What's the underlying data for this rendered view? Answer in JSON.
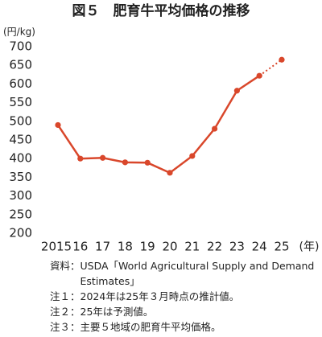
{
  "chart_data": {
    "type": "line",
    "title": "図５　肥育牛平均価格の推移",
    "y_unit": "(円/kg)",
    "x_unit": "(年)",
    "categories": [
      "2015",
      "16",
      "17",
      "18",
      "19",
      "20",
      "21",
      "22",
      "23",
      "24",
      "25"
    ],
    "series": [
      {
        "color": "#d9472b",
        "values": [
          490,
          400,
          402,
          390,
          389,
          362,
          407,
          480,
          582,
          622,
          665
        ]
      }
    ],
    "dotted_from_index": 9,
    "ylim": [
      200,
      700
    ],
    "yticks": [
      200,
      250,
      300,
      350,
      400,
      450,
      500,
      550,
      600,
      650,
      700
    ],
    "notes": [
      {
        "label": "資料：",
        "text": "USDA「World Agricultural Supply and Demand Estimates」"
      },
      {
        "label": "注１：",
        "text": "2024年は25年３月時点の推計値。"
      },
      {
        "label": "注２：",
        "text": "25年は予測値。"
      },
      {
        "label": "注３：",
        "text": "主要５地域の肥育牛平均価格。"
      }
    ]
  }
}
